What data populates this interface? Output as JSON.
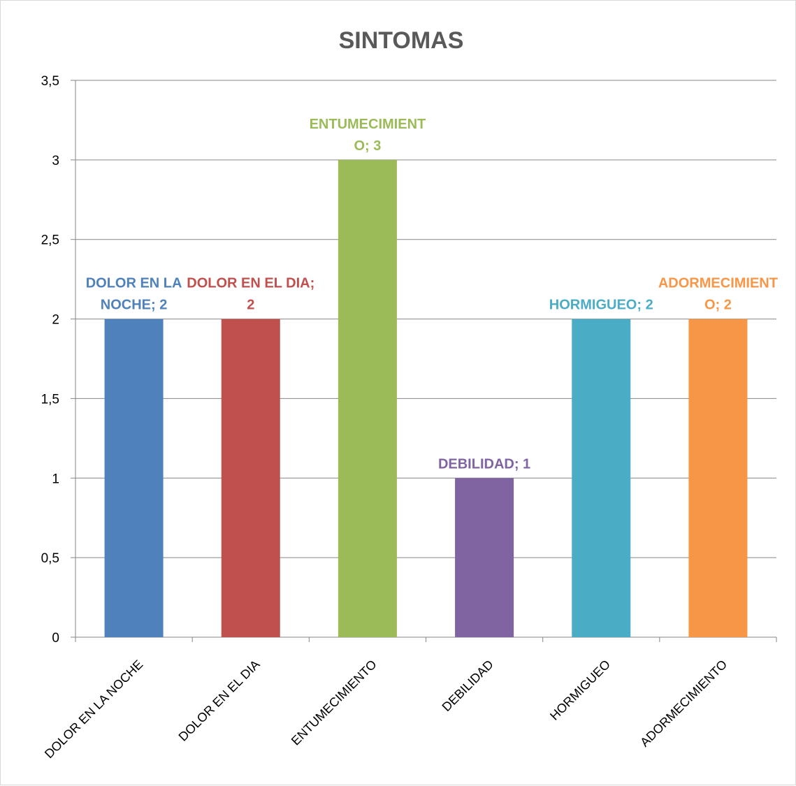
{
  "chart_data": {
    "type": "bar",
    "title": "SINTOMAS",
    "xlabel": "",
    "ylabel": "",
    "categories": [
      "DOLOR EN LA NOCHE",
      "DOLOR EN EL DIA",
      "ENTUMECIMIENTO",
      "DEBILIDAD",
      "HORMIGUEO",
      "ADORMECIMIENTO"
    ],
    "values": [
      2,
      2,
      3,
      1,
      2,
      2
    ],
    "colors": [
      "#4f81bd",
      "#c0504d",
      "#9bbb59",
      "#8064a2",
      "#4bacc6",
      "#f79646"
    ],
    "ylim": [
      0,
      3.5
    ],
    "yticks": [
      "0",
      "0,5",
      "1",
      "1,5",
      "2",
      "2,5",
      "3",
      "3,5"
    ],
    "grid": true,
    "legend": "none",
    "data_labels": [
      [
        "DOLOR EN LA",
        "NOCHE; 2"
      ],
      [
        "DOLOR EN EL DIA;",
        "2"
      ],
      [
        "ENTUMECIMIENT",
        "O; 3"
      ],
      [
        "DEBILIDAD; 1"
      ],
      [
        "HORMIGUEO; 2"
      ],
      [
        "ADORMECIMIENT",
        "O; 2"
      ]
    ]
  }
}
